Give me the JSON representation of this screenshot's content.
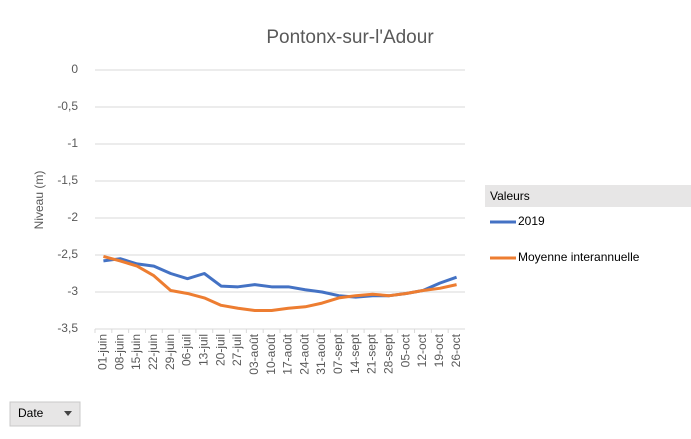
{
  "chart_data": {
    "type": "line",
    "title": "Pontonx-sur-l'Adour",
    "y_label": "Niveau (m)",
    "categories": [
      "01-juin",
      "08-juin",
      "15-juin",
      "22-juin",
      "29-juin",
      "06-juil",
      "13-juil",
      "20-juil",
      "27-juil",
      "03-août",
      "10-août",
      "17-août",
      "24-août",
      "31-août",
      "07-sept",
      "14-sept",
      "21-sept",
      "28-sept",
      "05-oct",
      "12-oct",
      "19-oct",
      "26-oct"
    ],
    "series": [
      {
        "name": "2019",
        "color": "#4472c4",
        "values": [
          -2.58,
          -2.55,
          -2.62,
          -2.65,
          -2.75,
          -2.82,
          -2.75,
          -2.92,
          -2.93,
          -2.9,
          -2.93,
          -2.93,
          -2.97,
          -3.0,
          -3.05,
          -3.07,
          -3.05,
          -3.05,
          -3.02,
          -2.98,
          -2.88,
          -2.8
        ]
      },
      {
        "name": "Moyenne interannuelle",
        "color": "#ed7d31",
        "values": [
          -2.52,
          -2.58,
          -2.65,
          -2.78,
          -2.98,
          -3.02,
          -3.08,
          -3.18,
          -3.22,
          -3.25,
          -3.25,
          -3.22,
          -3.2,
          -3.15,
          -3.08,
          -3.05,
          -3.03,
          -3.05,
          -3.02,
          -2.98,
          -2.95,
          -2.9
        ]
      }
    ],
    "ylim": [
      -3.5,
      0
    ],
    "yticks": [
      0,
      {
        "value": -0.5,
        "label": "-0,5"
      },
      -1,
      {
        "value": -1.5,
        "label": "-1,5"
      },
      -2,
      {
        "value": -2.5,
        "label": "-2,5"
      },
      -3,
      {
        "value": -3.5,
        "label": "-3,5"
      }
    ],
    "grid": true,
    "legend_title": "Valeurs",
    "legend": "right",
    "filter_button": "Date"
  }
}
